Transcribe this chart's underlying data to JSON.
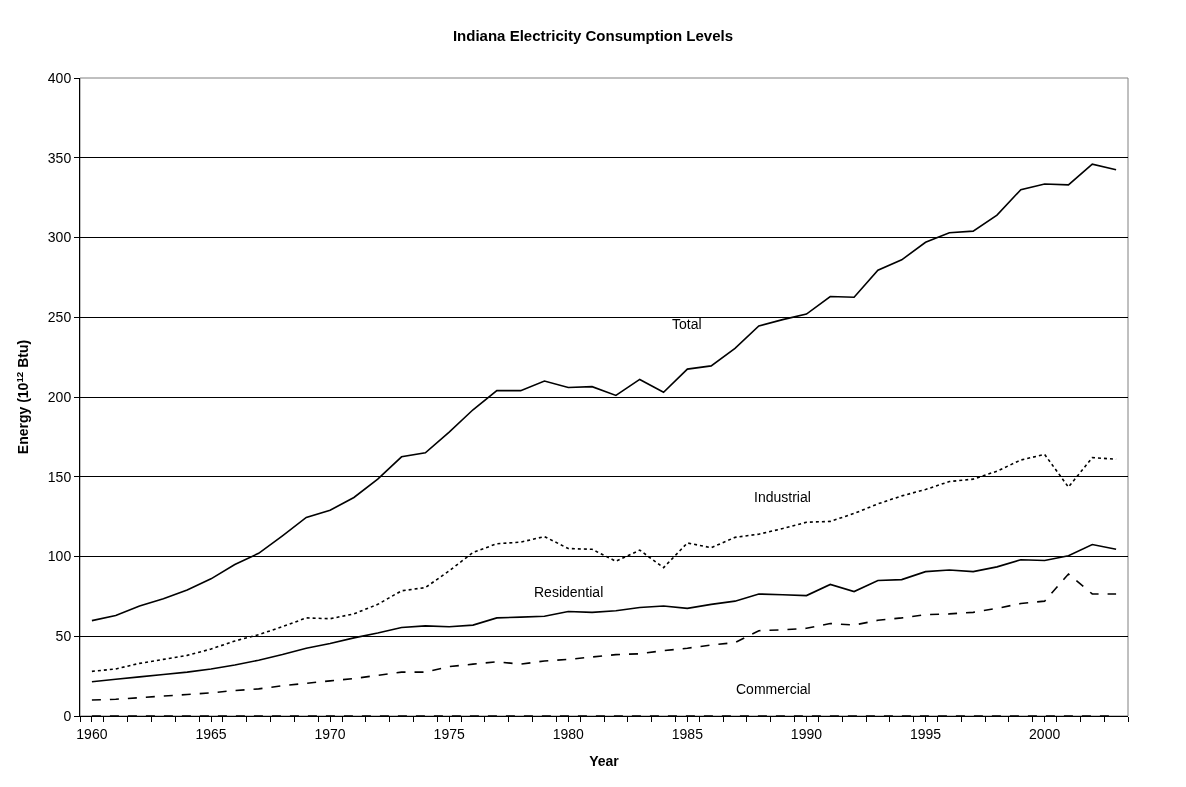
{
  "chart_data": {
    "type": "line",
    "title": "Indiana Electricity Consumption Levels",
    "xlabel": "Year",
    "ylabel": "Energy (10$^{12}$ Btu)",
    "categories": [
      "1960",
      null,
      null,
      null,
      null,
      "1965",
      null,
      null,
      null,
      null,
      "1970",
      null,
      null,
      null,
      null,
      "1975",
      null,
      null,
      null,
      null,
      "1980",
      null,
      null,
      null,
      null,
      "1985",
      null,
      null,
      null,
      null,
      "1990",
      null,
      null,
      null,
      null,
      "1995",
      null,
      null,
      null,
      null,
      "2000",
      null,
      null,
      null
    ],
    "series": [
      {
        "name": "Total",
        "color": "#000000",
        "line_style": "solid",
        "values": [
          59.8,
          63,
          69,
          73.5,
          79,
          86,
          95,
          102,
          113,
          124.5,
          129,
          137,
          148.5,
          162.5,
          165,
          178,
          192,
          204,
          204,
          210,
          206,
          206.5,
          201,
          211,
          203,
          217.5,
          219.5,
          230.5,
          244.5,
          248.5,
          252,
          263,
          262.5,
          279.5,
          286,
          297,
          303,
          304,
          314,
          330,
          333.5,
          333,
          346,
          342.5
        ]
      },
      {
        "name": "Industrial",
        "color": "#000000",
        "line_style": "dotted",
        "values": [
          28,
          29.5,
          33,
          35.5,
          38,
          42,
          47,
          51,
          56,
          61.5,
          61,
          64,
          70,
          78.5,
          80.5,
          91,
          102.5,
          108,
          109,
          112.5,
          105,
          104.5,
          97,
          104,
          93,
          108.5,
          105.5,
          112,
          114,
          117.5,
          121.5,
          122,
          127,
          133,
          138,
          142,
          147,
          148.5,
          153.5,
          160.5,
          164,
          143.5,
          162,
          161
        ]
      },
      {
        "name": "Residential",
        "color": "#000000",
        "line_style": "solid",
        "values": [
          21.5,
          23,
          24.5,
          26,
          27.5,
          29.5,
          32,
          35,
          38.5,
          42.5,
          45.5,
          49,
          52,
          55.5,
          56.5,
          56,
          57,
          61.5,
          62,
          62.5,
          65.5,
          65,
          66,
          68,
          69,
          67.5,
          70,
          72,
          76.5,
          76,
          75.5,
          82.5,
          78,
          85,
          85.5,
          90.5,
          91.5,
          90.5,
          93.5,
          98,
          97.5,
          100.5,
          107.5,
          104.5
        ]
      },
      {
        "name": "Commercial",
        "color": "#000000",
        "line_style": "dashed",
        "values": [
          10,
          10.5,
          11.5,
          12.5,
          13.5,
          14.5,
          16,
          17,
          19,
          20.5,
          22,
          23.5,
          25.5,
          27.5,
          27.5,
          31,
          32.5,
          34,
          32.5,
          34.5,
          35.5,
          37,
          38.5,
          39,
          41,
          42.5,
          44.5,
          46,
          53.5,
          54,
          55,
          58,
          57,
          60,
          61.5,
          63.5,
          64,
          65,
          67.5,
          70.5,
          72,
          89,
          76.5,
          76.5
        ]
      },
      {
        "color": "#000000",
        "line_style": "dashed",
        "values": [
          0,
          0,
          0,
          0,
          0,
          0,
          0,
          0,
          0,
          0,
          0,
          0,
          0,
          0,
          0,
          0,
          0,
          0,
          0,
          0,
          0,
          0,
          0,
          0,
          0,
          0,
          0,
          0,
          0,
          0,
          0,
          0,
          0,
          0,
          0,
          0,
          0,
          0,
          0,
          0,
          0,
          0,
          0,
          0
        ]
      }
    ],
    "ylim": [
      0,
      400
    ],
    "yticks": [
      0,
      50,
      100,
      150,
      200,
      250,
      300,
      350,
      400
    ],
    "grid": "y",
    "legend": false,
    "marker": "none"
  }
}
